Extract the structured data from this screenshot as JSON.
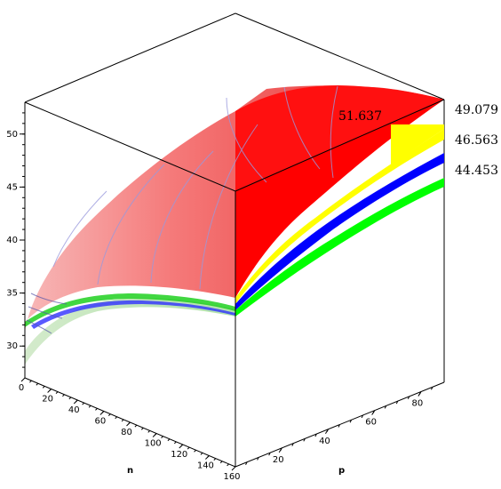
{
  "chart_data": {
    "type": "surface3d",
    "title": "",
    "axes": {
      "n": {
        "label": "n",
        "range": [
          0,
          160
        ],
        "ticks": [
          0,
          20,
          40,
          60,
          80,
          100,
          120,
          140,
          160
        ]
      },
      "p": {
        "label": "p",
        "range": [
          0,
          90
        ],
        "ticks": [
          20,
          40,
          60,
          80
        ]
      },
      "z": {
        "label": "",
        "range": [
          27,
          53
        ],
        "ticks": [
          30,
          35,
          40,
          45,
          50
        ]
      }
    },
    "surfaces": [
      {
        "label": "51.637",
        "color": "#ff0000"
      },
      {
        "label": "49.079",
        "color": "#ffff00"
      },
      {
        "label": "46.563",
        "color": "#0000ff"
      },
      {
        "label": "44.453",
        "color": "#00ff00"
      }
    ]
  }
}
